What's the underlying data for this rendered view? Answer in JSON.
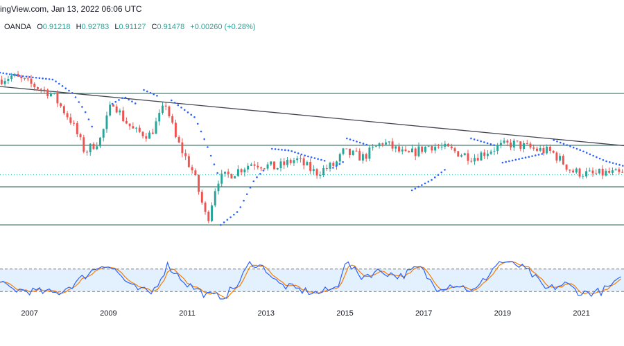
{
  "header": {
    "source": "ingView.com, Jan 13, 2022 06:06 UTC",
    "broker": "OANDA",
    "ohlc": [
      {
        "label": "O",
        "value": "0.91218"
      },
      {
        "label": "H",
        "value": "0.92783"
      },
      {
        "label": "L",
        "value": "0.91127"
      },
      {
        "label": "C",
        "value": "0.91478"
      }
    ],
    "change": "+0.00260 (+0.28%)"
  },
  "colors": {
    "up": "#26a69a",
    "down": "#ef5350",
    "sar": "#2962ff",
    "trendline": "#434651",
    "level": "#1e5c4f",
    "stoch_k": "#2962ff",
    "stoch_d": "#f57c00",
    "stoch_band": "#e3f0fd"
  },
  "chart_data": {
    "type": "candlestick",
    "x_axis_labels": [
      "2007",
      "2009",
      "2011",
      "2013",
      "2015",
      "2017",
      "2019",
      "2021"
    ],
    "x_axis_years": [
      2007,
      2009,
      2011,
      2013,
      2015,
      2017,
      2019,
      2021
    ],
    "x_range": [
      2006.25,
      2022.08
    ],
    "price_range": [
      0.7,
      1.28
    ],
    "last_price": 0.91478,
    "horizontal_levels": [
      1.15,
      1.0,
      0.88,
      0.77
    ],
    "trendline": {
      "start": [
        2006.25,
        1.17
      ],
      "end": [
        2022.08,
        0.999
      ]
    },
    "anchors": [
      [
        2006.25,
        1.19
      ],
      [
        2006.6,
        1.2
      ],
      [
        2007.2,
        1.17
      ],
      [
        2007.6,
        1.15
      ],
      [
        2008.1,
        1.07
      ],
      [
        2008.45,
        0.98
      ],
      [
        2008.85,
        1.02
      ],
      [
        2009.15,
        1.13
      ],
      [
        2009.4,
        1.08
      ],
      [
        2009.7,
        1.04
      ],
      [
        2010.1,
        1.03
      ],
      [
        2010.5,
        1.12
      ],
      [
        2010.75,
        1.02
      ],
      [
        2011.2,
        0.92
      ],
      [
        2011.55,
        0.78
      ],
      [
        2011.8,
        0.9
      ],
      [
        2012.2,
        0.92
      ],
      [
        2012.7,
        0.95
      ],
      [
        2013.3,
        0.935
      ],
      [
        2013.8,
        0.96
      ],
      [
        2014.3,
        0.92
      ],
      [
        2014.8,
        0.945
      ],
      [
        2015.0,
        0.98
      ],
      [
        2015.5,
        0.965
      ],
      [
        2016.0,
        1.01
      ],
      [
        2016.6,
        0.97
      ],
      [
        2017.2,
        1.0
      ],
      [
        2017.6,
        0.99
      ],
      [
        2018.3,
        0.965
      ],
      [
        2018.9,
        0.995
      ],
      [
        2019.3,
        1.005
      ],
      [
        2019.8,
        0.99
      ],
      [
        2020.3,
        0.98
      ],
      [
        2020.8,
        0.925
      ],
      [
        2021.3,
        0.915
      ],
      [
        2021.7,
        0.92
      ],
      [
        2022.08,
        0.915
      ]
    ],
    "parabolic_sar": [
      [
        [
          2006.25,
          1.21
        ],
        [
          2006.8,
          1.2
        ],
        [
          2007.6,
          1.19
        ],
        [
          2008.1,
          1.15
        ],
        [
          2008.4,
          1.1
        ],
        [
          2008.6,
          1.05
        ]
      ],
      [
        [
          2009.1,
          1.12
        ],
        [
          2009.4,
          1.14
        ],
        [
          2009.7,
          1.12
        ]
      ],
      [
        [
          2009.9,
          1.16
        ],
        [
          2010.3,
          1.14
        ]
      ],
      [
        [
          2010.6,
          1.13
        ],
        [
          2011.2,
          1.08
        ],
        [
          2011.5,
          1.0
        ],
        [
          2011.8,
          0.91
        ]
      ],
      [
        [
          2011.85,
          0.77
        ],
        [
          2012.3,
          0.81
        ],
        [
          2012.7,
          0.9
        ],
        [
          2013.0,
          0.935
        ]
      ],
      [
        [
          2013.15,
          0.99
        ],
        [
          2013.6,
          0.985
        ],
        [
          2014.0,
          0.97
        ],
        [
          2014.5,
          0.955
        ]
      ],
      [
        [
          2014.7,
          0.935
        ],
        [
          2015.0,
          0.955
        ]
      ],
      [
        [
          2015.05,
          1.02
        ],
        [
          2015.6,
          1.0
        ]
      ],
      [
        [
          2016.7,
          0.87
        ],
        [
          2017.2,
          0.9
        ],
        [
          2017.6,
          0.935
        ]
      ],
      [
        [
          2018.2,
          1.02
        ],
        [
          2018.8,
          1.0
        ]
      ],
      [
        [
          2019.0,
          0.95
        ],
        [
          2019.6,
          0.965
        ],
        [
          2020.0,
          0.975
        ]
      ],
      [
        [
          2020.3,
          1.015
        ],
        [
          2021.0,
          0.985
        ],
        [
          2021.6,
          0.955
        ],
        [
          2022.08,
          0.94
        ]
      ]
    ],
    "stochastic": {
      "range": [
        0,
        100
      ],
      "band": [
        20,
        80
      ],
      "k_anchors": [
        [
          2006.25,
          40
        ],
        [
          2006.6,
          25
        ],
        [
          2007.2,
          20
        ],
        [
          2007.7,
          15
        ],
        [
          2008.2,
          45
        ],
        [
          2008.5,
          70
        ],
        [
          2008.9,
          95
        ],
        [
          2009.2,
          75
        ],
        [
          2009.6,
          30
        ],
        [
          2010.1,
          15
        ],
        [
          2010.5,
          90
        ],
        [
          2011.0,
          40
        ],
        [
          2011.5,
          10
        ],
        [
          2011.9,
          5
        ],
        [
          2012.3,
          40
        ],
        [
          2012.6,
          100
        ],
        [
          2013.0,
          80
        ],
        [
          2013.3,
          40
        ],
        [
          2013.8,
          25
        ],
        [
          2014.3,
          15
        ],
        [
          2014.8,
          30
        ],
        [
          2015.0,
          100
        ],
        [
          2015.4,
          60
        ],
        [
          2015.9,
          75
        ],
        [
          2016.4,
          60
        ],
        [
          2016.9,
          85
        ],
        [
          2017.3,
          30
        ],
        [
          2017.8,
          40
        ],
        [
          2018.3,
          20
        ],
        [
          2018.9,
          100
        ],
        [
          2019.3,
          95
        ],
        [
          2019.7,
          70
        ],
        [
          2020.1,
          25
        ],
        [
          2020.6,
          40
        ],
        [
          2021.0,
          15
        ],
        [
          2021.5,
          20
        ],
        [
          2022.08,
          55
        ]
      ]
    }
  }
}
